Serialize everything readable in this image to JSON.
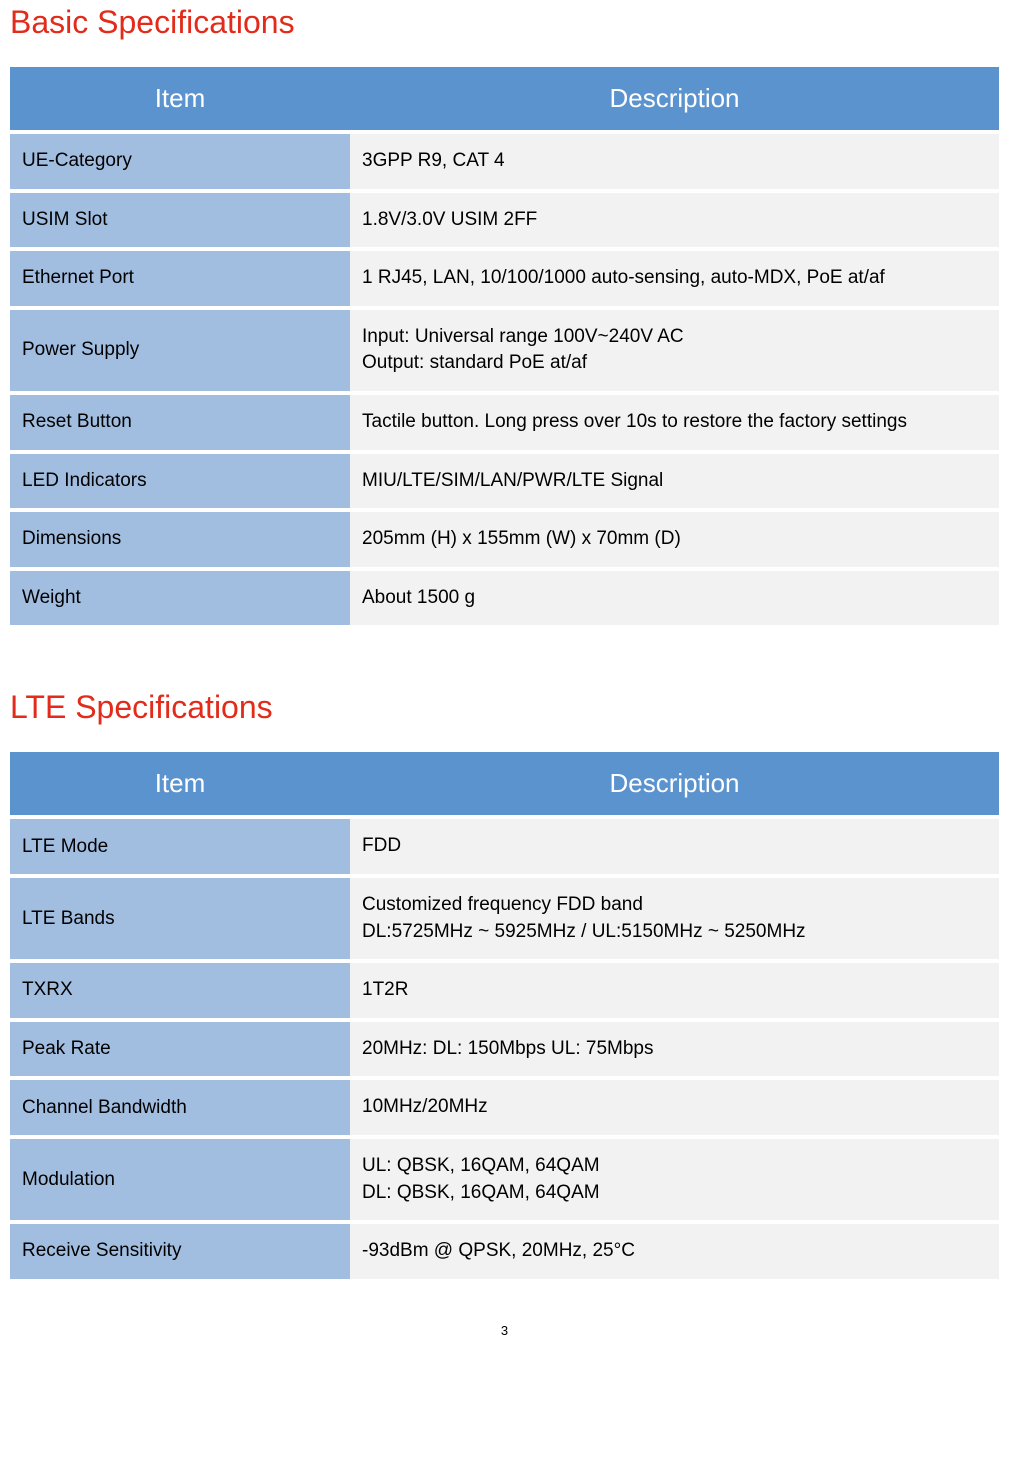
{
  "colors": {
    "title": "#e22b1a",
    "header_bg": "#5b93cf",
    "header_text": "#ffffff",
    "item_bg": "#a1bee1",
    "desc_bg": "#f2f2f2",
    "text": "#000000"
  },
  "page_number": "3",
  "sections": [
    {
      "title": "Basic Specifications",
      "headers": {
        "item": "Item",
        "description": "Description"
      },
      "rows": [
        {
          "item": "UE-Category",
          "desc": "3GPP R9, CAT 4"
        },
        {
          "item": "USIM Slot",
          "desc": "1.8V/3.0V USIM 2FF"
        },
        {
          "item": "Ethernet Port",
          "desc": "1 RJ45, LAN, 10/100/1000 auto-sensing, auto-MDX, PoE at/af"
        },
        {
          "item": "Power Supply",
          "desc": "Input: Universal range 100V~240V AC\nOutput: standard PoE at/af"
        },
        {
          "item": "Reset Button",
          "desc": "Tactile button. Long press over 10s to restore the factory settings"
        },
        {
          "item": "LED Indicators",
          "desc": "MIU/LTE/SIM/LAN/PWR/LTE Signal"
        },
        {
          "item": "Dimensions",
          "desc": "205mm (H) x 155mm (W) x 70mm (D)"
        },
        {
          "item": "Weight",
          "desc": "About 1500 g"
        }
      ]
    },
    {
      "title": "LTE Specifications",
      "headers": {
        "item": "Item",
        "description": "Description"
      },
      "rows": [
        {
          "item": "LTE Mode",
          "desc": "FDD"
        },
        {
          "item": "LTE Bands",
          "desc": "Customized frequency FDD band\nDL:5725MHz ~ 5925MHz / UL:5150MHz ~ 5250MHz"
        },
        {
          "item": "TXRX",
          "desc": "1T2R"
        },
        {
          "item": "Peak Rate",
          "desc": "20MHz: DL: 150Mbps UL: 75Mbps"
        },
        {
          "item": "Channel Bandwidth",
          "desc": "10MHz/20MHz"
        },
        {
          "item": "Modulation",
          "desc": "UL: QBSK, 16QAM, 64QAM\nDL: QBSK, 16QAM, 64QAM"
        },
        {
          "item": "Receive Sensitivity",
          "desc": "-93dBm @ QPSK, 20MHz, 25°C"
        }
      ]
    }
  ]
}
